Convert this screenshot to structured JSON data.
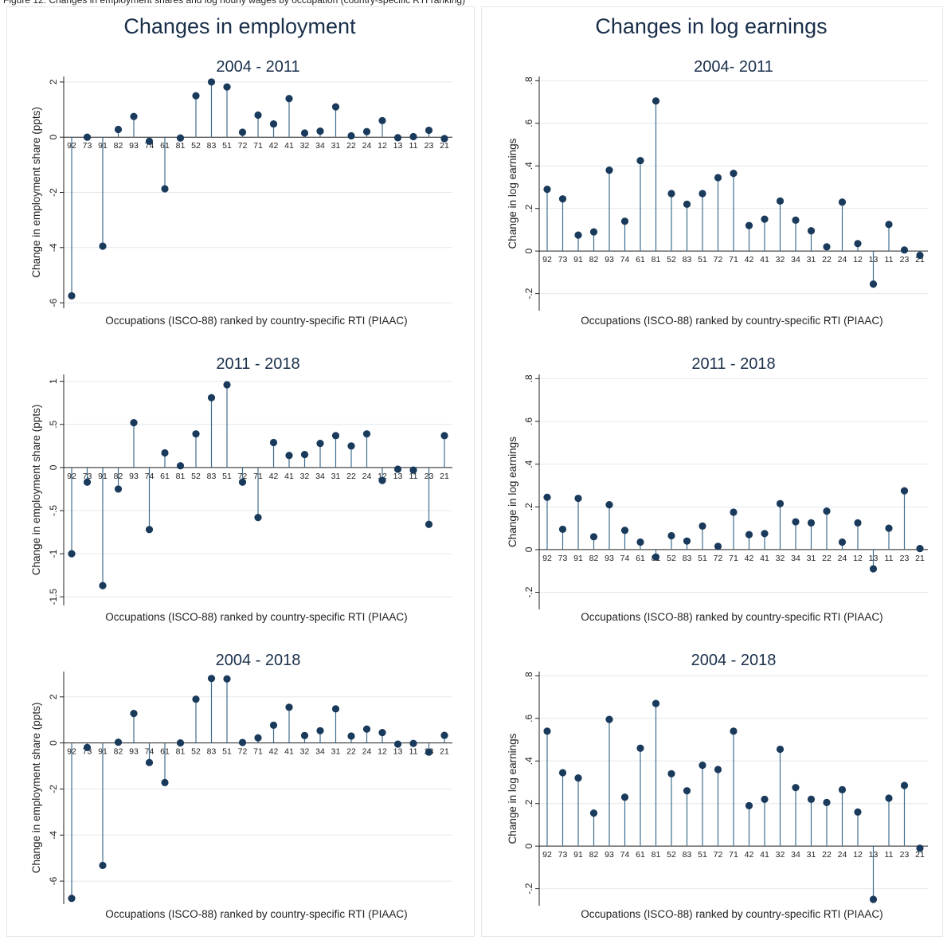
{
  "header": "Figure 12: Changes in employment shares and log hourly wages by occupation (country-specific RTI ranking)",
  "columns": [
    {
      "title": "Changes in employment"
    },
    {
      "title": "Changes in log earnings"
    }
  ],
  "chart_data": [
    {
      "type": "stem",
      "title": "2004 - 2011",
      "xlabel": "Occupations (ISCO-88) ranked by country-specific RTI (PIAAC)",
      "ylabel": "Change in employment share (ppts)",
      "categories": [
        "92",
        "73",
        "91",
        "82",
        "93",
        "74",
        "61",
        "81",
        "52",
        "83",
        "51",
        "72",
        "71",
        "42",
        "41",
        "32",
        "34",
        "31",
        "22",
        "24",
        "12",
        "13",
        "11",
        "23",
        "21"
      ],
      "values": [
        -5.75,
        0.0,
        -3.95,
        0.28,
        0.75,
        -0.15,
        -1.87,
        -0.03,
        1.5,
        2.0,
        1.82,
        0.18,
        0.8,
        0.48,
        1.4,
        0.15,
        0.22,
        1.1,
        0.05,
        0.2,
        0.6,
        -0.02,
        0.02,
        0.25,
        -0.05
      ],
      "ylim": [
        -6.2,
        2.2
      ],
      "yticks": [
        -6,
        -4,
        -2,
        0,
        2
      ],
      "ytick_labels": [
        "-6",
        "-4",
        "-2",
        "0",
        "2"
      ],
      "grid": true
    },
    {
      "type": "stem",
      "title": "2004- 2011",
      "xlabel": "Occupations (ISCO-88) ranked by country-specific RTI (PIAAC)",
      "ylabel": "Change in log earnings",
      "categories": [
        "92",
        "73",
        "91",
        "82",
        "93",
        "74",
        "61",
        "81",
        "52",
        "83",
        "51",
        "72",
        "71",
        "42",
        "41",
        "32",
        "34",
        "31",
        "22",
        "24",
        "12",
        "13",
        "11",
        "23",
        "21"
      ],
      "values": [
        0.29,
        0.245,
        0.075,
        0.09,
        0.38,
        0.14,
        0.425,
        0.705,
        0.27,
        0.22,
        0.27,
        0.345,
        0.365,
        0.12,
        0.15,
        0.235,
        0.145,
        0.095,
        0.02,
        0.23,
        0.035,
        -0.155,
        0.125,
        0.005,
        -0.02
      ],
      "ylim": [
        -0.28,
        0.82
      ],
      "yticks": [
        -0.2,
        0,
        0.2,
        0.4,
        0.6,
        0.8
      ],
      "ytick_labels": [
        "-.2",
        "0",
        ".2",
        ".4",
        ".6",
        ".8"
      ],
      "grid": true
    },
    {
      "type": "stem",
      "title": "2011 - 2018",
      "xlabel": "Occupations (ISCO-88) ranked by country-specific RTI (PIAAC)",
      "ylabel": "Change in employment share (ppts)",
      "categories": [
        "92",
        "73",
        "91",
        "82",
        "93",
        "74",
        "61",
        "81",
        "52",
        "83",
        "51",
        "72",
        "71",
        "42",
        "41",
        "32",
        "34",
        "31",
        "22",
        "24",
        "12",
        "13",
        "11",
        "23",
        "21"
      ],
      "values": [
        -1.0,
        -0.17,
        -1.37,
        -0.25,
        0.52,
        -0.72,
        0.17,
        0.02,
        0.39,
        0.81,
        0.96,
        -0.17,
        -0.58,
        0.29,
        0.14,
        0.15,
        0.28,
        0.37,
        0.25,
        0.39,
        -0.15,
        -0.02,
        -0.03,
        -0.66,
        0.37
      ],
      "ylim": [
        -1.6,
        1.08
      ],
      "yticks": [
        -1.5,
        -1,
        -0.5,
        0,
        0.5,
        1
      ],
      "ytick_labels": [
        "-1.5",
        "-1",
        "-.5",
        "0",
        ".5",
        "1"
      ],
      "grid": true
    },
    {
      "type": "stem",
      "title": "2011 - 2018",
      "xlabel": "Occupations (ISCO-88) ranked by country-specific RTI (PIAAC)",
      "ylabel": "Change in log earnings",
      "categories": [
        "92",
        "73",
        "91",
        "82",
        "93",
        "74",
        "61",
        "81",
        "52",
        "83",
        "51",
        "72",
        "71",
        "42",
        "41",
        "32",
        "34",
        "31",
        "22",
        "24",
        "12",
        "13",
        "11",
        "23",
        "21"
      ],
      "values": [
        0.245,
        0.095,
        0.24,
        0.06,
        0.21,
        0.09,
        0.035,
        -0.035,
        0.065,
        0.04,
        0.11,
        0.015,
        0.175,
        0.07,
        0.075,
        0.215,
        0.13,
        0.125,
        0.18,
        0.035,
        0.125,
        -0.09,
        0.1,
        0.275,
        0.005
      ],
      "ylim": [
        -0.28,
        0.82
      ],
      "yticks": [
        -0.2,
        0,
        0.2,
        0.4,
        0.6,
        0.8
      ],
      "ytick_labels": [
        "-.2",
        "0",
        ".2",
        ".4",
        ".6",
        ".8"
      ],
      "grid": true
    },
    {
      "type": "stem",
      "title": "2004 - 2018",
      "xlabel": "Occupations (ISCO-88) ranked by country-specific RTI (PIAAC)",
      "ylabel": "Change in employment share (ppts)",
      "categories": [
        "92",
        "73",
        "91",
        "82",
        "93",
        "74",
        "61",
        "81",
        "52",
        "83",
        "51",
        "72",
        "71",
        "42",
        "41",
        "32",
        "34",
        "31",
        "22",
        "24",
        "12",
        "13",
        "11",
        "23",
        "21"
      ],
      "values": [
        -6.75,
        -0.2,
        -5.32,
        0.03,
        1.28,
        -0.85,
        -1.72,
        0.0,
        1.9,
        2.8,
        2.78,
        0.02,
        0.22,
        0.77,
        1.55,
        0.32,
        0.53,
        1.48,
        0.3,
        0.6,
        0.45,
        -0.05,
        -0.02,
        -0.4,
        0.33
      ],
      "ylim": [
        -7.0,
        3.1
      ],
      "yticks": [
        -6,
        -4,
        -2,
        0,
        2
      ],
      "ytick_labels": [
        "-6",
        "-4",
        "-2",
        "0",
        "2"
      ],
      "grid": true
    },
    {
      "type": "stem",
      "title": "2004 - 2018",
      "xlabel": "Occupations (ISCO-88) ranked by country-specific RTI (PIAAC)",
      "ylabel": "Change in log earnings",
      "categories": [
        "92",
        "73",
        "91",
        "82",
        "93",
        "74",
        "61",
        "81",
        "52",
        "83",
        "51",
        "72",
        "71",
        "42",
        "41",
        "32",
        "34",
        "31",
        "22",
        "24",
        "12",
        "13",
        "11",
        "23",
        "21"
      ],
      "values": [
        0.54,
        0.345,
        0.32,
        0.155,
        0.595,
        0.23,
        0.46,
        0.67,
        0.34,
        0.26,
        0.38,
        0.36,
        0.54,
        0.19,
        0.22,
        0.455,
        0.275,
        0.22,
        0.205,
        0.265,
        0.16,
        -0.25,
        0.225,
        0.285,
        -0.01
      ],
      "ylim": [
        -0.28,
        0.82
      ],
      "yticks": [
        -0.2,
        0,
        0.2,
        0.4,
        0.6,
        0.8
      ],
      "ytick_labels": [
        "-.2",
        "0",
        ".2",
        ".4",
        ".6",
        ".8"
      ],
      "grid": true
    }
  ],
  "colors": {
    "stem": "#3f6e8f",
    "marker": "#1a3a5c",
    "grid": "#e4e8ec",
    "axis": "#222222",
    "title": "#1a2f4a"
  }
}
